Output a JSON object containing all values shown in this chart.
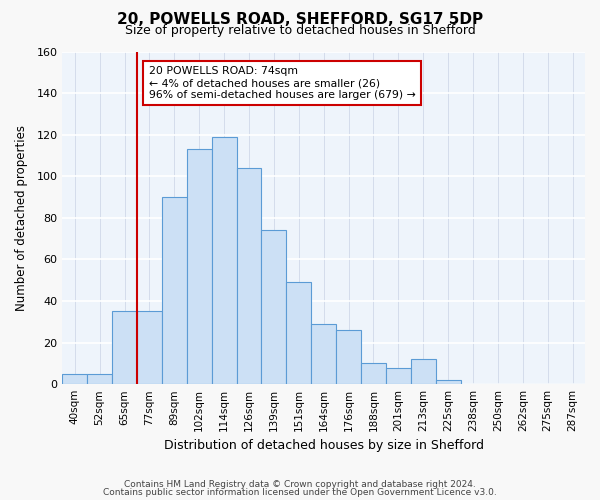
{
  "title": "20, POWELLS ROAD, SHEFFORD, SG17 5DP",
  "subtitle": "Size of property relative to detached houses in Shefford",
  "xlabel": "Distribution of detached houses by size in Shefford",
  "ylabel": "Number of detached properties",
  "bin_labels": [
    "40sqm",
    "52sqm",
    "65sqm",
    "77sqm",
    "89sqm",
    "102sqm",
    "114sqm",
    "126sqm",
    "139sqm",
    "151sqm",
    "164sqm",
    "176sqm",
    "188sqm",
    "201sqm",
    "213sqm",
    "225sqm",
    "238sqm",
    "250sqm",
    "262sqm",
    "275sqm",
    "287sqm"
  ],
  "bar_values": [
    5,
    5,
    35,
    35,
    90,
    113,
    119,
    104,
    74,
    49,
    29,
    26,
    10,
    8,
    12,
    2,
    0,
    0,
    0,
    0,
    0
  ],
  "bar_color": "#cce0f5",
  "bar_edge_color": "#5b9bd5",
  "reference_line_x": 2.5,
  "reference_line_label": "20 POWELLS ROAD: 74sqm",
  "annotation_line1": "← 4% of detached houses are smaller (26)",
  "annotation_line2": "96% of semi-detached houses are larger (679) →",
  "annotation_box_color": "#ffffff",
  "annotation_box_edge_color": "#cc0000",
  "ref_line_color": "#cc0000",
  "ylim": [
    0,
    160
  ],
  "yticks": [
    0,
    20,
    40,
    60,
    80,
    100,
    120,
    140,
    160
  ],
  "footer1": "Contains HM Land Registry data © Crown copyright and database right 2024.",
  "footer2": "Contains public sector information licensed under the Open Government Licence v3.0.",
  "bg_color": "#eef4fb",
  "fig_bg_color": "#f8f8f8"
}
